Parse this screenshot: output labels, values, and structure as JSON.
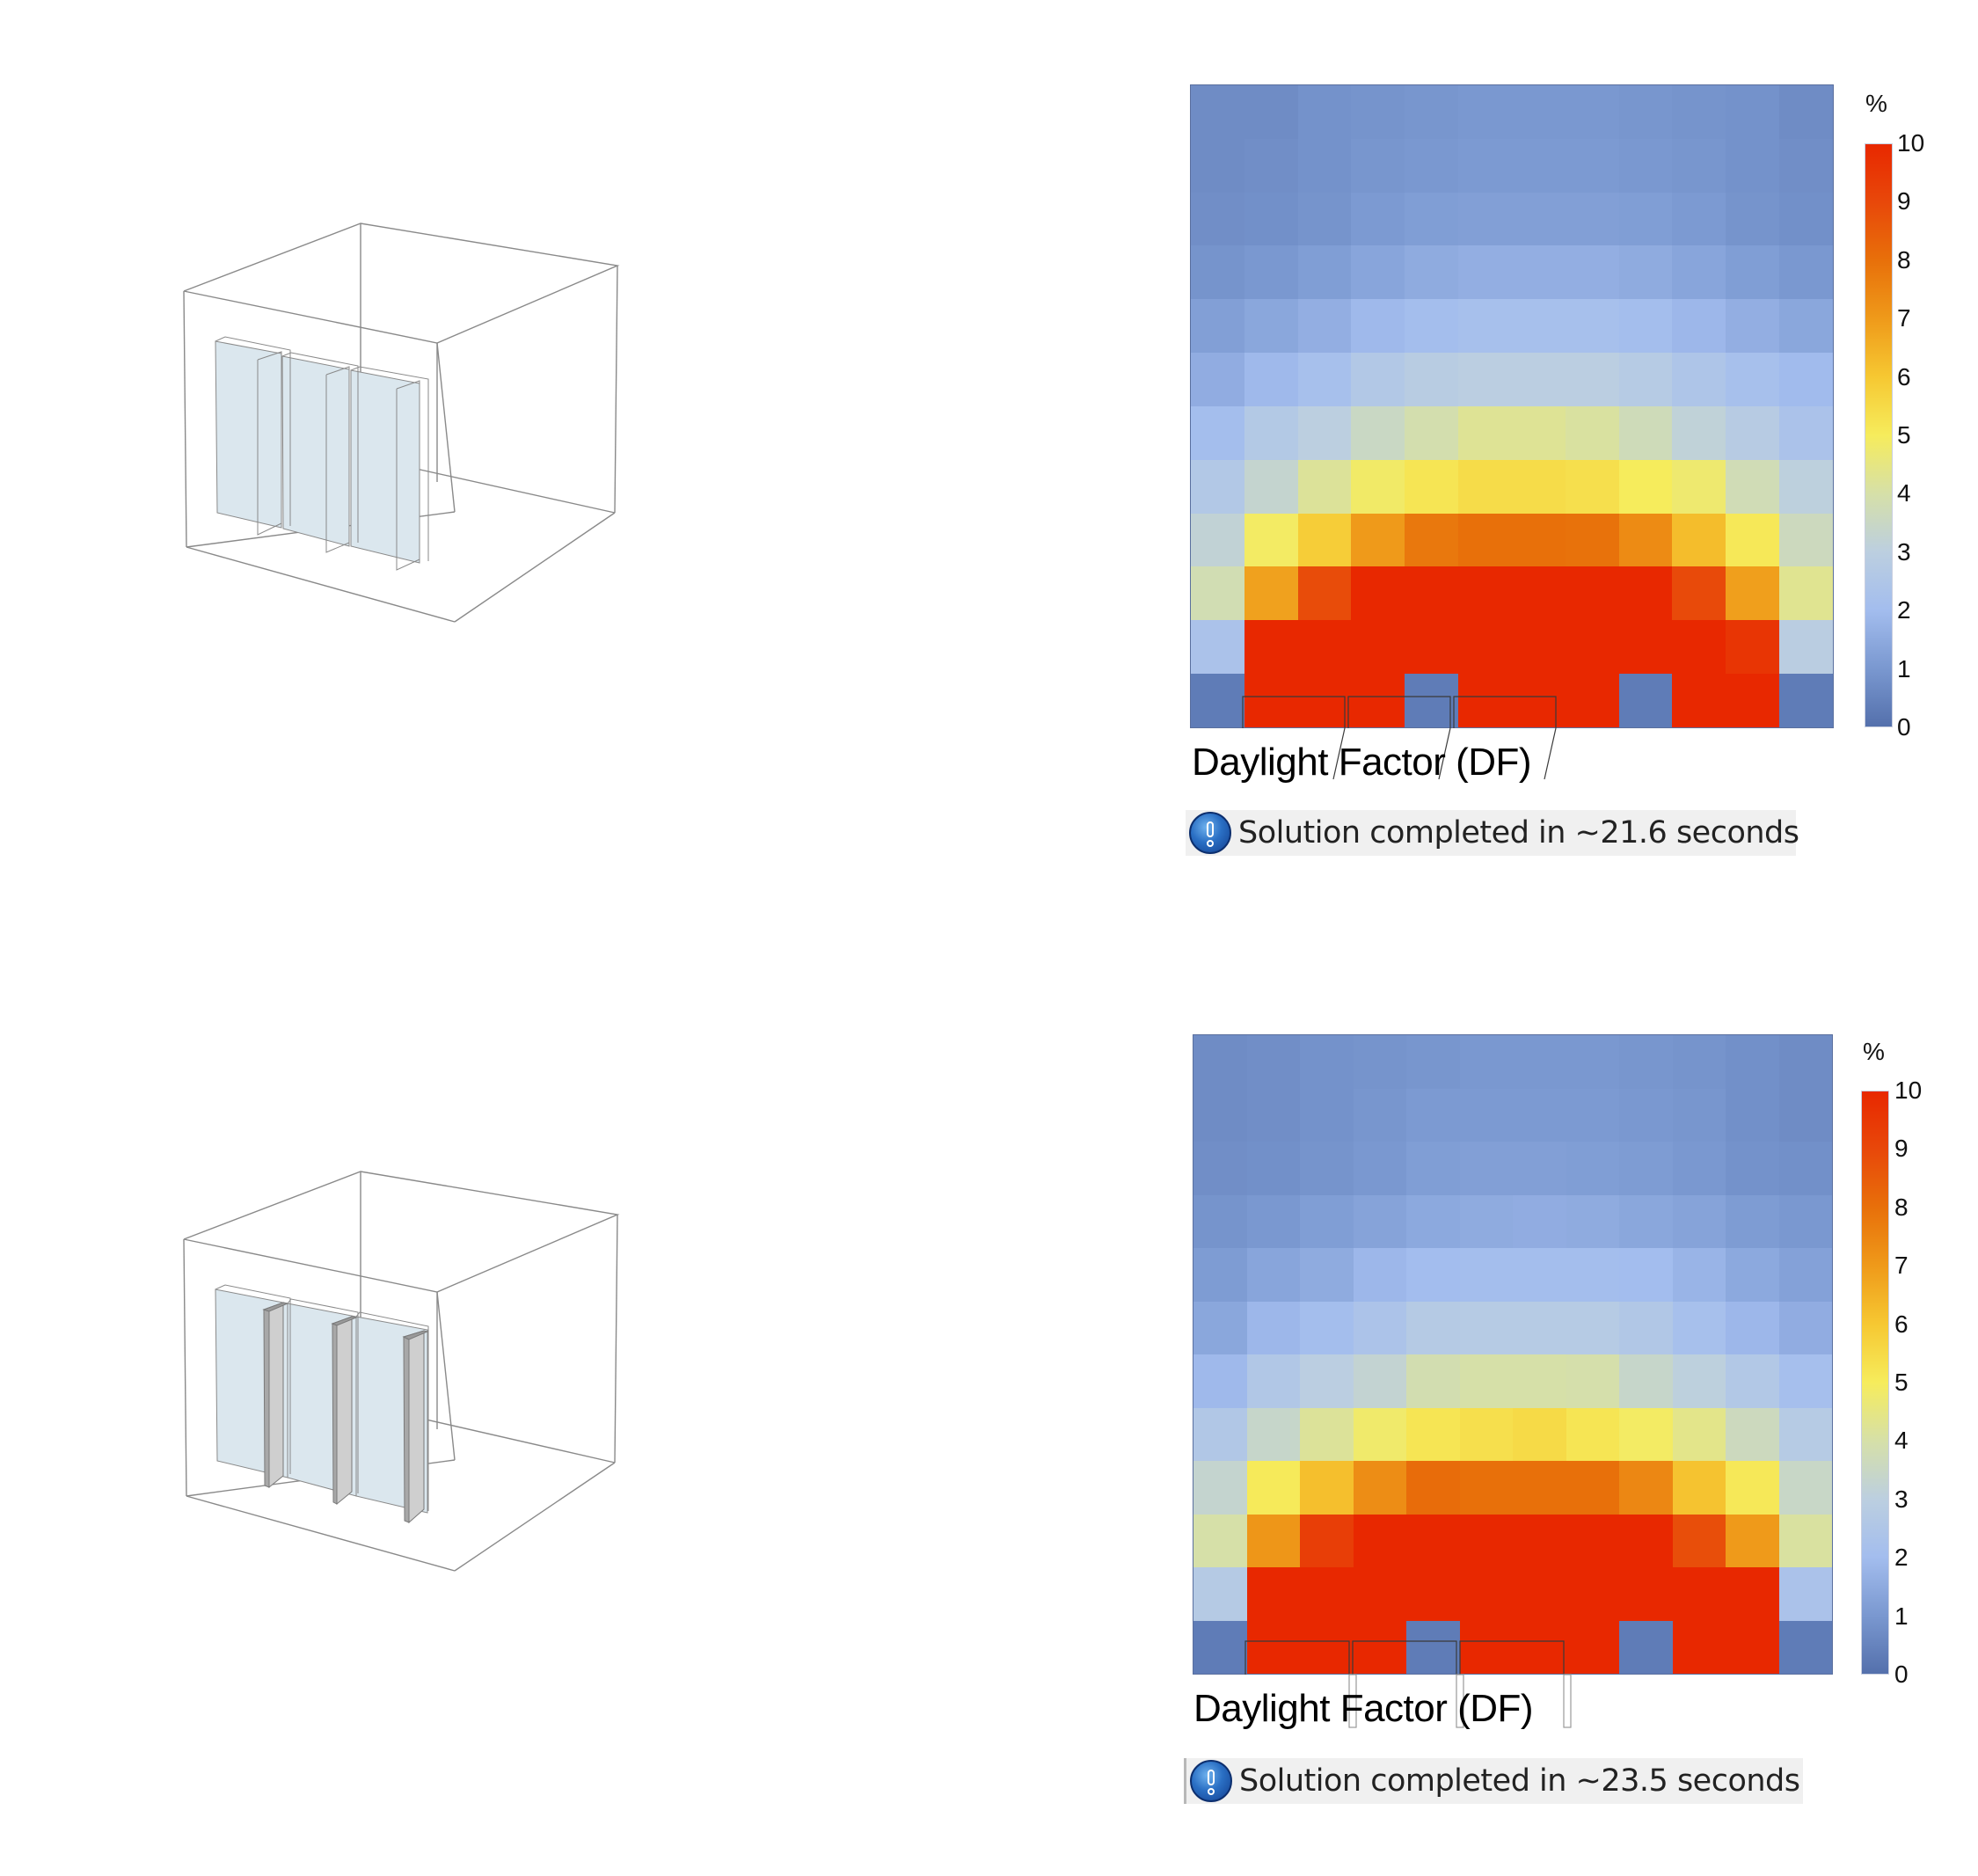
{
  "panels": [
    {
      "id": "without-fins",
      "model_label": "Room with three glazed windows (no vertical fins)",
      "chart_title": "Daylight Factor (DF)",
      "status_text": "Solution completed in ~21.6 seconds",
      "colorbar": {
        "unit": "%",
        "ticks": [
          "10",
          "9",
          "8",
          "7",
          "6",
          "5",
          "4",
          "3",
          "2",
          "1",
          "0"
        ]
      }
    },
    {
      "id": "with-fins",
      "model_label": "Room with three glazed windows and vertical fins",
      "chart_title": "Daylight Factor (DF)",
      "status_text": "Solution completed in ~23.5 seconds",
      "colorbar": {
        "unit": "%",
        "ticks": [
          "10",
          "9",
          "8",
          "7",
          "6",
          "5",
          "4",
          "3",
          "2",
          "1",
          "0"
        ]
      }
    }
  ],
  "colors": {
    "scale": [
      "#5470ac",
      "#7a98d0",
      "#a3bdee",
      "#bccfe0",
      "#d6e0a8",
      "#f6ec5c",
      "#f6c832",
      "#ef9a1a",
      "#e8700a",
      "#e8480a",
      "#e82800"
    ],
    "glass": "#dbe7ee",
    "fin": "#c8c8c8",
    "wireframe": "#8a8a8a"
  },
  "chart_data": [
    {
      "type": "heatmap",
      "title": "Daylight Factor (DF)",
      "subtitle": "Solution completed in ~21.6 seconds",
      "colorbar_label": "%",
      "zlim": [
        0,
        10
      ],
      "colorbar_ticks": [
        0,
        1,
        2,
        3,
        4,
        5,
        6,
        7,
        8,
        9,
        10
      ],
      "rows": 12,
      "cols": 12,
      "row_order": "top-to-bottom (back of room to window wall)",
      "values": [
        [
          0.7,
          0.7,
          0.85,
          0.9,
          0.95,
          1.0,
          1.0,
          1.0,
          0.95,
          0.9,
          0.85,
          0.7
        ],
        [
          0.7,
          0.75,
          0.85,
          0.95,
          1.0,
          1.05,
          1.05,
          1.05,
          1.0,
          0.95,
          0.85,
          0.75
        ],
        [
          0.75,
          0.8,
          0.9,
          1.05,
          1.15,
          1.2,
          1.2,
          1.2,
          1.15,
          1.05,
          0.9,
          0.8
        ],
        [
          0.9,
          1.0,
          1.15,
          1.35,
          1.5,
          1.6,
          1.6,
          1.6,
          1.5,
          1.35,
          1.15,
          1.0
        ],
        [
          1.2,
          1.4,
          1.6,
          1.9,
          2.05,
          2.15,
          2.15,
          2.15,
          2.05,
          1.85,
          1.6,
          1.4
        ],
        [
          1.55,
          1.9,
          2.15,
          2.6,
          2.85,
          2.95,
          2.95,
          2.95,
          2.75,
          2.45,
          2.15,
          1.95
        ],
        [
          2.05,
          2.65,
          3.0,
          3.5,
          3.9,
          4.25,
          4.25,
          4.1,
          3.7,
          3.15,
          2.8,
          2.3
        ],
        [
          2.6,
          3.3,
          4.2,
          4.85,
          5.2,
          5.45,
          5.45,
          5.35,
          5.0,
          4.75,
          3.75,
          3.05
        ],
        [
          3.2,
          4.9,
          5.85,
          7.0,
          7.8,
          8.0,
          8.0,
          7.95,
          7.35,
          6.25,
          5.1,
          3.6
        ],
        [
          3.8,
          6.85,
          8.9,
          10,
          10,
          10,
          10,
          10,
          10,
          8.95,
          6.9,
          4.3
        ],
        [
          2.3,
          10,
          10,
          10,
          10,
          10,
          10,
          10,
          10,
          10,
          9.6,
          2.9
        ],
        [
          0.3,
          10,
          10,
          10,
          0.3,
          10,
          10,
          10,
          0.3,
          10,
          10,
          0.3
        ]
      ]
    },
    {
      "type": "heatmap",
      "title": "Daylight Factor (DF)",
      "subtitle": "Solution completed in ~23.5 seconds",
      "colorbar_label": "%",
      "zlim": [
        0,
        10
      ],
      "colorbar_ticks": [
        0,
        1,
        2,
        3,
        4,
        5,
        6,
        7,
        8,
        9,
        10
      ],
      "rows": 12,
      "cols": 12,
      "row_order": "top-to-bottom (back of room to window wall)",
      "values": [
        [
          0.7,
          0.75,
          0.85,
          0.9,
          0.95,
          1.0,
          1.0,
          1.0,
          0.95,
          0.9,
          0.8,
          0.7
        ],
        [
          0.7,
          0.75,
          0.85,
          0.95,
          1.05,
          1.05,
          1.05,
          1.05,
          1.0,
          0.95,
          0.8,
          0.7
        ],
        [
          0.75,
          0.8,
          0.9,
          1.0,
          1.15,
          1.2,
          1.2,
          1.15,
          1.1,
          1.0,
          0.85,
          0.8
        ],
        [
          0.9,
          1.0,
          1.15,
          1.3,
          1.45,
          1.5,
          1.55,
          1.5,
          1.4,
          1.3,
          1.1,
          1.0
        ],
        [
          1.1,
          1.35,
          1.5,
          1.85,
          2.0,
          2.05,
          2.05,
          2.05,
          2.0,
          1.75,
          1.45,
          1.25
        ],
        [
          1.4,
          1.85,
          2.05,
          2.35,
          2.7,
          2.75,
          2.75,
          2.75,
          2.55,
          2.15,
          1.85,
          1.55
        ],
        [
          1.9,
          2.55,
          2.95,
          3.25,
          3.85,
          4.0,
          4.0,
          3.95,
          3.4,
          3.05,
          2.6,
          2.1
        ],
        [
          2.55,
          3.4,
          4.2,
          4.8,
          5.2,
          5.35,
          5.5,
          5.2,
          4.9,
          4.4,
          3.6,
          2.75
        ],
        [
          3.3,
          5.05,
          6.2,
          7.3,
          8.1,
          8.0,
          8.0,
          8.0,
          7.45,
          6.1,
          5.1,
          3.45
        ],
        [
          4.0,
          7.1,
          9.3,
          10,
          10,
          10,
          10,
          10,
          10,
          8.85,
          7.0,
          4.1
        ],
        [
          2.7,
          10,
          10,
          10,
          10,
          10,
          10,
          10,
          10,
          10,
          10,
          2.3
        ],
        [
          0.3,
          10,
          10,
          10,
          0.3,
          10,
          10,
          10,
          0.3,
          10,
          10,
          0.3
        ]
      ]
    }
  ]
}
